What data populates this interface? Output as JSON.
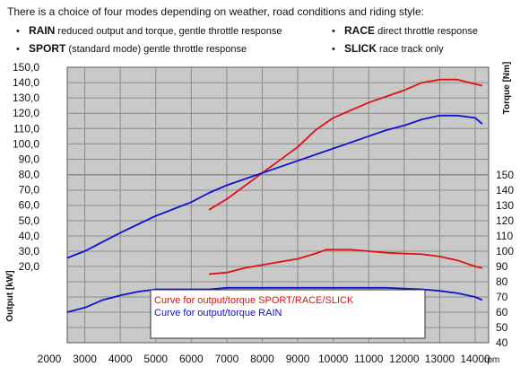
{
  "intro": "There is a choice of four modes depending on weather, road conditions and riding style:",
  "modes": [
    {
      "name": "RAIN",
      "desc": " reduced output and torque, gentle throttle response"
    },
    {
      "name": "SPORT",
      "desc": " (standard mode) gentle throttle response"
    },
    {
      "name": "RACE",
      "desc": " direct throttle response"
    },
    {
      "name": "SLICK",
      "desc": " race track only"
    }
  ],
  "bullet": "•",
  "chart_data": {
    "type": "line",
    "xlabel": "rpm",
    "ylabel_left": "Output [kW]",
    "ylabel_right": "Torque [Nm]",
    "xlim": [
      2000,
      14000
    ],
    "x_ticks": [
      "2000",
      "3000",
      "4000",
      "5000",
      "6000",
      "7000",
      "8000",
      "9000",
      "10000",
      "11000",
      "12000",
      "13000",
      "14000"
    ],
    "y_left_ticks": [
      "150,0",
      "140,0",
      "130,0",
      "120,0",
      "110,0",
      "100,0",
      "90,0",
      "80,0",
      "70,0",
      "60,0",
      "50,0",
      "40,0",
      "30,0",
      "20,0"
    ],
    "y_left_range": [
      20,
      150
    ],
    "y_right_ticks": [
      "150",
      "140",
      "130",
      "120",
      "110",
      "100",
      "90",
      "80",
      "70",
      "60",
      "50",
      "40"
    ],
    "y_right_range": [
      40,
      150
    ],
    "grid": true,
    "legend": [
      {
        "label": "Curve for output/torque SPORT/RACE/SLICK",
        "color": "#e01010"
      },
      {
        "label": "Curve for output/torque RAIN",
        "color": "#1010d0"
      }
    ],
    "series": [
      {
        "name": "Curve for output/torque SPORT/RACE/SLICK",
        "quantity": "output",
        "axis": "left",
        "color": "#e01010",
        "x": [
          6500,
          7000,
          8000,
          9000,
          9500,
          10000,
          11000,
          12000,
          12500,
          13000,
          13500,
          14000,
          14200
        ],
        "y": [
          57,
          64,
          81,
          98,
          109,
          117,
          127,
          135,
          140,
          142,
          142,
          139,
          138
        ]
      },
      {
        "name": "Curve for output/torque RAIN",
        "quantity": "output",
        "axis": "left",
        "color": "#1010d0",
        "x": [
          2500,
          3000,
          3500,
          4000,
          4500,
          5000,
          6000,
          6500,
          7000,
          8000,
          9000,
          10000,
          11000,
          11500,
          12000,
          12500,
          13000,
          13500,
          14000,
          14200
        ],
        "y": [
          25.5,
          30,
          36,
          42,
          47.5,
          53,
          62,
          68,
          73,
          81,
          89,
          97,
          105,
          109,
          112,
          116,
          118.5,
          118.5,
          117,
          113
        ]
      },
      {
        "name": "Curve for output/torque SPORT/RACE/SLICK",
        "quantity": "torque",
        "axis": "right",
        "color": "#e01010",
        "x": [
          6500,
          7000,
          7500,
          8000,
          8500,
          9000,
          9500,
          9800,
          10500,
          11000,
          11500,
          12000,
          12500,
          13000,
          13500,
          14000,
          14200
        ],
        "y": [
          85,
          86,
          89,
          91,
          93,
          95,
          98.5,
          101,
          101,
          100,
          99,
          98.5,
          98,
          96.5,
          94,
          90,
          89
        ]
      },
      {
        "name": "Curve for output/torque RAIN",
        "quantity": "torque",
        "axis": "right",
        "color": "#1010d0",
        "x": [
          2500,
          3000,
          3500,
          4000,
          4500,
          5000,
          5500,
          6000,
          6500,
          7000,
          8000,
          9000,
          10000,
          11000,
          11500,
          12000,
          12500,
          13000,
          13500,
          14000,
          14200
        ],
        "y": [
          60,
          63,
          68,
          71,
          73.5,
          75,
          75,
          75,
          75,
          76,
          76,
          76,
          76,
          76,
          76,
          75.5,
          75,
          74,
          72.5,
          70,
          68
        ]
      }
    ]
  }
}
